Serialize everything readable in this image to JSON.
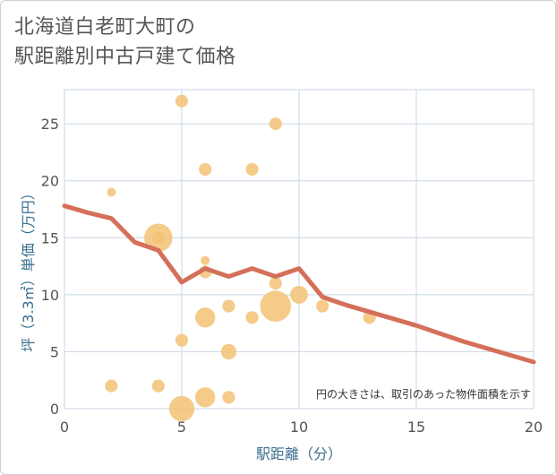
{
  "title": {
    "line1": "北海道白老町大町の",
    "line2": "駅距離別中古戸建て価格"
  },
  "chart_data": {
    "type": "scatter",
    "title": "北海道白老町大町の駅距離別中古戸建て価格",
    "xlabel": "駅距離（分）",
    "ylabel": "坪（3.3㎡）単価（万円）",
    "xlim": [
      0,
      20
    ],
    "ylim": [
      0,
      28
    ],
    "x_ticks": [
      0,
      5,
      10,
      15,
      20
    ],
    "y_ticks": [
      0,
      5,
      10,
      15,
      20,
      25
    ],
    "grid": true,
    "annotation": "円の大きさは、取引のあった物件面積を示す",
    "colors": {
      "bubble": "#f3c276",
      "line": "#d4705a",
      "grid": "#c9d6e3"
    },
    "bubbles": [
      {
        "x": 2,
        "y": 19,
        "size": 1
      },
      {
        "x": 2,
        "y": 2,
        "size": 2
      },
      {
        "x": 4,
        "y": 15,
        "size": 10
      },
      {
        "x": 4,
        "y": 15,
        "size": 2
      },
      {
        "x": 4,
        "y": 2,
        "size": 2
      },
      {
        "x": 5,
        "y": 27,
        "size": 2
      },
      {
        "x": 5,
        "y": 6,
        "size": 2
      },
      {
        "x": 5,
        "y": 0,
        "size": 8
      },
      {
        "x": 6,
        "y": 21,
        "size": 2
      },
      {
        "x": 6,
        "y": 13,
        "size": 1
      },
      {
        "x": 6,
        "y": 12,
        "size": 2
      },
      {
        "x": 6,
        "y": 8,
        "size": 5
      },
      {
        "x": 6,
        "y": 1,
        "size": 5
      },
      {
        "x": 7,
        "y": 9,
        "size": 2
      },
      {
        "x": 7,
        "y": 5,
        "size": 3
      },
      {
        "x": 7,
        "y": 1,
        "size": 2
      },
      {
        "x": 8,
        "y": 21,
        "size": 2
      },
      {
        "x": 8,
        "y": 8,
        "size": 2
      },
      {
        "x": 9,
        "y": 25,
        "size": 2
      },
      {
        "x": 9,
        "y": 11,
        "size": 2
      },
      {
        "x": 9,
        "y": 9,
        "size": 12
      },
      {
        "x": 10,
        "y": 10,
        "size": 4
      },
      {
        "x": 11,
        "y": 9,
        "size": 2
      },
      {
        "x": 13,
        "y": 8,
        "size": 2
      }
    ],
    "trend_line": {
      "x": [
        0,
        1,
        2,
        3,
        4,
        5,
        6,
        7,
        8,
        9,
        10,
        11,
        12,
        13,
        14,
        15,
        16,
        17,
        18,
        19,
        20
      ],
      "y": [
        17.8,
        17.2,
        16.7,
        14.6,
        13.9,
        11.1,
        12.3,
        11.6,
        12.3,
        11.6,
        12.3,
        9.8,
        9.1,
        8.5,
        7.9,
        7.3,
        6.6,
        5.9,
        5.3,
        4.7,
        4.1
      ]
    }
  }
}
